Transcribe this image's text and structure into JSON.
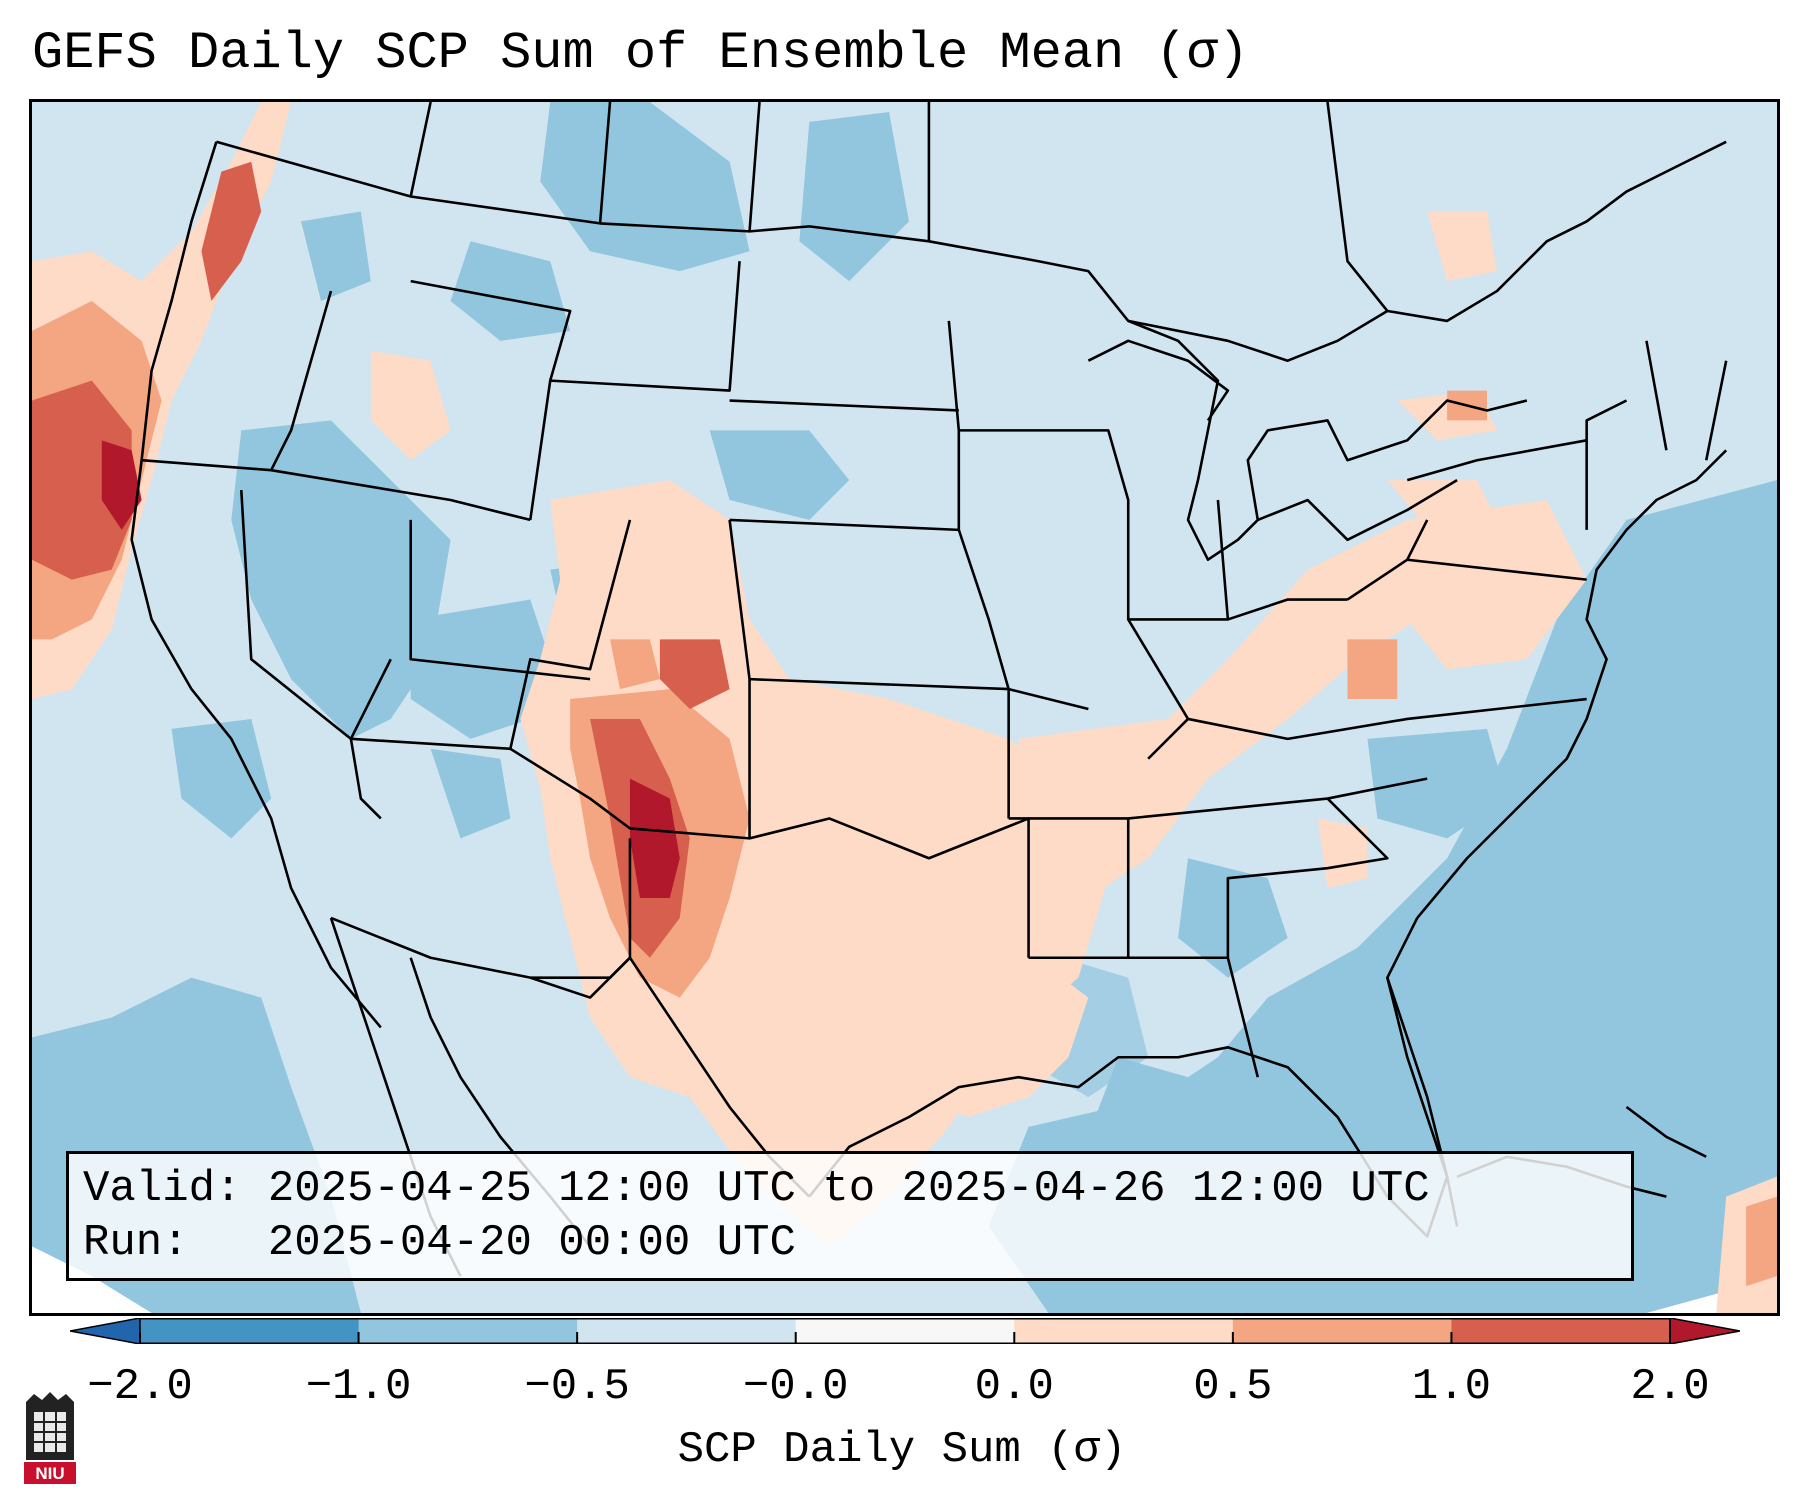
{
  "title": "GEFS Daily SCP Sum of Ensemble Mean (σ)",
  "info": {
    "valid_label": "Valid:",
    "valid_value": "2025-04-25 12:00 UTC to 2025-04-26 12:00 UTC",
    "run_label": "Run:",
    "run_value": "2025-04-20 00:00 UTC"
  },
  "colorbar": {
    "label": "SCP Daily Sum (σ)",
    "ticks": [
      "−2.0",
      "−1.0",
      "−0.5",
      "−0.0",
      "0.0",
      "0.5",
      "1.0",
      "2.0"
    ],
    "bins": [
      {
        "range": "-2.0 to -1.0",
        "color": "#4393c3"
      },
      {
        "range": "-1.0 to -0.5",
        "color": "#92c5de"
      },
      {
        "range": "-0.5 to -0.0",
        "color": "#d1e5f0"
      },
      {
        "range": "-0.0 to 0.0",
        "color": "#f7f7f7"
      },
      {
        "range": "0.0 to 0.5",
        "color": "#fddbc7"
      },
      {
        "range": "0.5 to 1.0",
        "color": "#f4a582"
      },
      {
        "range": "1.0 to 2.0",
        "color": "#d6604d"
      }
    ],
    "extend_low_color": "#2166ac",
    "extend_high_color": "#b2182b"
  },
  "map": {
    "projection": "Lambert Conformal, CONUS",
    "background_color": "#d1e5f0",
    "ocean_negative_color": "#92c5de",
    "max_anomaly_color": "#b2182b",
    "highlights": [
      {
        "region": "Pacific Northwest coast",
        "level": "0.5 to 2.0"
      },
      {
        "region": "West Texas / SE New Mexico",
        "level": "1.0 to 2.0"
      },
      {
        "region": "Texas / Oklahoma",
        "level": "0.0 to 1.0"
      },
      {
        "region": "Tennessee / Ohio Valley",
        "level": "0.0 to 0.5"
      },
      {
        "region": "Great Basin / Intermountain West",
        "level": "-1.0 to -0.5"
      },
      {
        "region": "Atlantic / Gulf / Pacific oceans",
        "level": "-1.0 to -0.5"
      }
    ]
  },
  "logo": {
    "text": "NIU",
    "color": "#c8102e"
  }
}
